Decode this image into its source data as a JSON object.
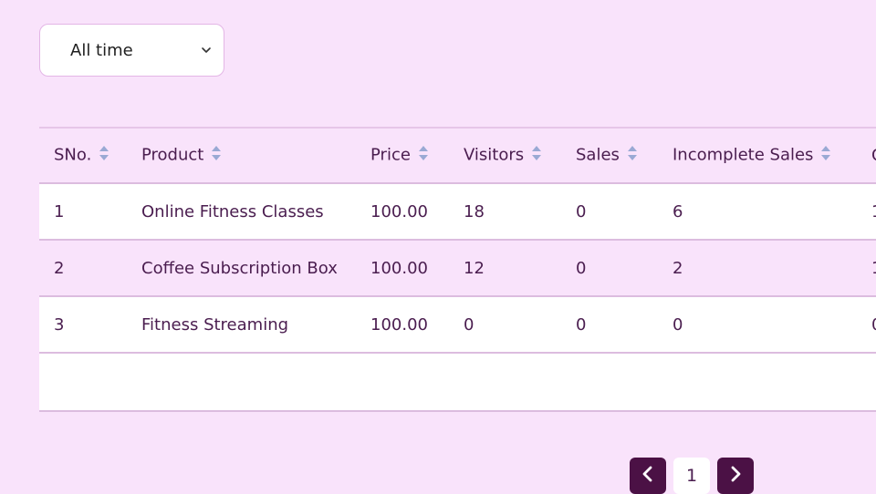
{
  "filter": {
    "selected": "All time"
  },
  "table": {
    "columns": [
      "SNo.",
      "Product",
      "Price",
      "Visitors",
      "Sales",
      "Incomplete Sales",
      "C"
    ],
    "rows": [
      [
        "1",
        "Online Fitness Classes",
        "100.00",
        "18",
        "0",
        "6",
        "1"
      ],
      [
        "2",
        "Coffee Subscription Box",
        "100.00",
        "12",
        "0",
        "2",
        "1"
      ],
      [
        "3",
        "Fitness Streaming",
        "100.00",
        "0",
        "0",
        "0",
        "0"
      ]
    ]
  },
  "pagination": {
    "current": "1"
  },
  "colors": {
    "background": "#f9e3fb",
    "accent": "#4b1145",
    "text": "#4a1d4f",
    "sort_icon": "#9aa9d4"
  },
  "icons": {
    "filter": "chevron-down-icon",
    "sort": "sort-arrows-icon",
    "prev": "chevron-left-icon",
    "next": "chevron-right-icon"
  }
}
